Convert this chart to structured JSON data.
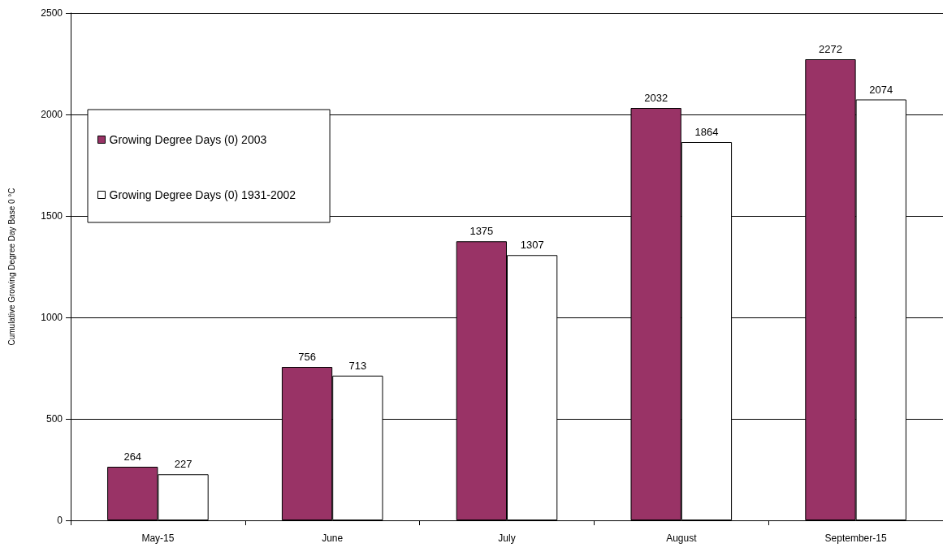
{
  "chart_data": {
    "type": "bar",
    "categories": [
      "May-15",
      "June",
      "July",
      "August",
      "September-15"
    ],
    "series": [
      {
        "name": "Growing Degree Days (0) 2003",
        "color": "#993366",
        "values": [
          264,
          756,
          1375,
          2032,
          2272
        ]
      },
      {
        "name": "Growing Degree Days (0) 1931-2002",
        "color": "#ffffff",
        "values": [
          227,
          713,
          1307,
          1864,
          2074
        ]
      }
    ],
    "ylabel": "Cumulative Growing Degree Day Base 0 °C",
    "ylim": [
      0,
      2500
    ],
    "yticks": [
      0,
      500,
      1000,
      1500,
      2000,
      2500
    ],
    "grid": "y",
    "legend": "top left",
    "data_labels": true
  }
}
